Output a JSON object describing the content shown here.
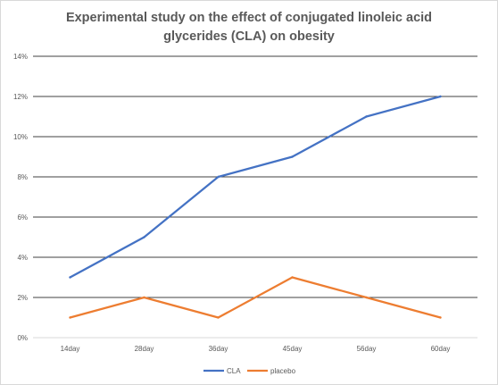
{
  "chart_data": {
    "type": "line",
    "title": "Experimental study on the effect of conjugated linoleic acid glycerides (CLA) on obesity",
    "categories": [
      "14day",
      "28day",
      "36day",
      "45day",
      "56day",
      "60day"
    ],
    "series": [
      {
        "name": "CLA",
        "color": "#4472C4",
        "values": [
          3,
          5,
          8,
          9,
          11,
          12
        ]
      },
      {
        "name": "placebo",
        "color": "#ED7D31",
        "values": [
          1,
          2,
          1,
          3,
          2,
          1
        ]
      }
    ],
    "ylim": [
      0,
      14
    ],
    "yticks": [
      0,
      2,
      4,
      6,
      8,
      10,
      12,
      14
    ],
    "ytick_labels": [
      "0%",
      "2%",
      "4%",
      "6%",
      "8%",
      "10%",
      "12%",
      "14%"
    ],
    "grid": true,
    "legend": "bottom",
    "gridline_color": "#000000",
    "axis_color": "#d9d9d9"
  }
}
